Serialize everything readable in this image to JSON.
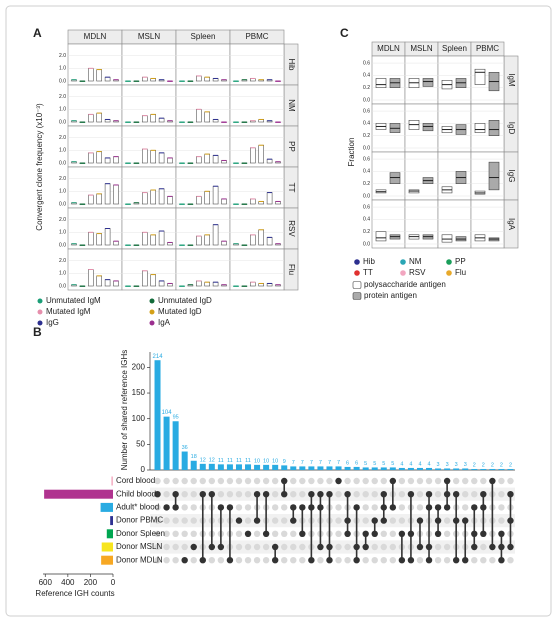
{
  "chart_data": [
    {
      "type": "faceted-box",
      "panel": "A",
      "ylabel": "Convergent clone frequency (x10⁻³)",
      "columns": [
        "MDLN",
        "MSLN",
        "Spleen",
        "PBMC"
      ],
      "rows": [
        "Hib",
        "NM",
        "PP",
        "TT",
        "RSV",
        "Flu"
      ],
      "ylim": [
        0,
        2.6
      ],
      "yticks": [
        {
          "value": 0,
          "label": "0.0"
        },
        {
          "value": 1,
          "label": "1.0"
        },
        {
          "value": 2,
          "label": "2.0"
        }
      ],
      "series": [
        {
          "name": "Unmutated IgM",
          "color": "#1b9e77",
          "values": [
            0.1,
            0,
            0,
            0,
            0.1,
            0,
            0,
            0,
            0.1,
            0,
            0,
            0,
            0.1,
            0,
            0,
            0,
            0.1,
            0,
            0,
            0.1,
            0.1,
            0,
            0,
            0
          ]
        },
        {
          "name": "Unmutated IgD",
          "color": "#126b3a",
          "values": [
            0,
            0,
            0,
            0.1,
            0,
            0,
            0,
            0,
            0,
            0,
            0,
            0,
            0,
            0.1,
            0,
            0,
            0,
            0,
            0,
            0,
            0,
            0,
            0.1,
            0
          ]
        },
        {
          "name": "Mutated IgM",
          "color": "#e68fac",
          "values": [
            1.0,
            0.3,
            0.4,
            0.2,
            0.6,
            0.5,
            1.0,
            0.1,
            0.8,
            1.1,
            0.5,
            1.2,
            0.7,
            0.9,
            0.6,
            0.4,
            1.0,
            1.0,
            0.7,
            0.8,
            1.3,
            1.2,
            0.4,
            0.3
          ]
        },
        {
          "name": "Mutated IgD",
          "color": "#d4a017",
          "values": [
            0.9,
            0.2,
            0.3,
            0.1,
            0.7,
            0.6,
            0.8,
            0.2,
            0.9,
            1.0,
            0.7,
            1.4,
            0.8,
            1.1,
            1.0,
            0.2,
            0.9,
            0.8,
            0.8,
            1.2,
            0.8,
            0.9,
            0.3,
            0.2
          ]
        },
        {
          "name": "IgG",
          "color": "#2c2f8f",
          "values": [
            0.3,
            0.1,
            0.2,
            0.1,
            0.2,
            0.3,
            0.2,
            0.1,
            0.4,
            0.8,
            0.6,
            0.3,
            1.6,
            1.2,
            1.4,
            0.9,
            1.3,
            1.1,
            1.6,
            0.6,
            0.5,
            0.4,
            0.3,
            0.2
          ]
        },
        {
          "name": "IgA",
          "color": "#9b2f8f",
          "values": [
            0.1,
            0,
            0.1,
            0,
            0.1,
            0.1,
            0,
            0,
            0.5,
            0.4,
            0.2,
            0.1,
            1.5,
            0.6,
            0.4,
            0.2,
            0.3,
            0.2,
            0.3,
            0.1,
            0.4,
            0.2,
            0.1,
            0.1
          ]
        }
      ]
    },
    {
      "type": "upset",
      "panel": "B",
      "ylabel": "Number of shared reference IGHs",
      "values": [
        214,
        104,
        95,
        36,
        18,
        12,
        12,
        11,
        11,
        11,
        11,
        10,
        10,
        10,
        9,
        7,
        7,
        7,
        7,
        7,
        7,
        6,
        6,
        5,
        5,
        5,
        5,
        4,
        4,
        4,
        4,
        3,
        3,
        3,
        3,
        2,
        2,
        2,
        2,
        2
      ],
      "color": "#29abe2",
      "ylim": [
        0,
        230
      ],
      "yticks": [
        0,
        50,
        100,
        150,
        200
      ],
      "sets": [
        "Cord blood",
        "Child blood",
        "Adult* blood",
        "Donor PBMC",
        "Donor Spleen",
        "Donor MSLN",
        "Donor MDLN"
      ],
      "set_colors": [
        "#f4b6c8",
        "#b0338f",
        "#29abe2",
        "#2e3192",
        "#00a651",
        "#f7e51e",
        "#f7a823"
      ],
      "set_sizes": [
        15,
        610,
        110,
        25,
        55,
        100,
        105
      ],
      "set_xlim": [
        0,
        620
      ],
      "set_xticks": [
        600,
        400,
        200,
        0
      ],
      "set_xlabel": "Reference IGH counts",
      "intersections": [
        [
          1
        ],
        [
          2
        ],
        [
          1,
          2
        ],
        [
          6
        ],
        [
          5
        ],
        [
          1,
          6
        ],
        [
          1,
          5
        ],
        [
          2,
          5
        ],
        [
          2,
          6
        ],
        [
          3
        ],
        [
          4
        ],
        [
          1,
          3
        ],
        [
          1,
          4
        ],
        [
          5,
          6
        ],
        [
          0,
          1
        ],
        [
          2,
          3
        ],
        [
          2,
          4
        ],
        [
          1,
          2,
          6
        ],
        [
          1,
          2,
          5
        ],
        [
          1,
          5,
          6
        ],
        [
          0
        ],
        [
          1,
          3,
          4
        ],
        [
          2,
          5,
          6
        ],
        [
          4,
          5
        ],
        [
          3,
          4
        ],
        [
          1,
          2,
          3
        ],
        [
          0,
          2
        ],
        [
          4,
          6
        ],
        [
          1,
          4,
          6
        ],
        [
          3,
          5
        ],
        [
          1,
          2,
          5,
          6
        ],
        [
          2,
          3,
          4
        ],
        [
          0,
          1,
          2
        ],
        [
          1,
          3,
          6
        ],
        [
          3,
          6
        ],
        [
          2,
          4,
          5
        ],
        [
          1,
          2,
          4
        ],
        [
          0,
          5
        ],
        [
          4,
          5,
          6
        ],
        [
          1,
          3,
          5
        ]
      ]
    },
    {
      "type": "faceted-box",
      "panel": "C",
      "ylabel": "Fraction",
      "columns": [
        "MDLN",
        "MSLN",
        "Spleen",
        "PBMC"
      ],
      "rows": [
        "IgM",
        "IgD",
        "IgG",
        "IgA"
      ],
      "ylim": [
        0,
        0.65
      ],
      "yticks": [
        {
          "value": 0,
          "label": "0.0"
        },
        0.2,
        0.4,
        0.6
      ],
      "antigens": [
        {
          "name": "Hib",
          "color": "#2c2f8f"
        },
        {
          "name": "NM",
          "color": "#2aa6b5"
        },
        {
          "name": "PP",
          "color": "#1a9e5a"
        },
        {
          "name": "TT",
          "color": "#e0312f"
        },
        {
          "name": "RSV",
          "color": "#f2a6c0"
        },
        {
          "name": "Flu",
          "color": "#e8a92a"
        }
      ],
      "series": [
        {
          "name": "polysaccharide antigen",
          "color": "#ffffff",
          "q1": [
            0.2,
            0.2,
            0.18,
            0.25,
            0.3,
            0.3,
            0.25,
            0.25,
            0.05,
            0.05,
            0.05,
            0.03,
            0.05,
            0.08,
            0.03,
            0.05
          ],
          "median": [
            0.25,
            0.28,
            0.25,
            0.45,
            0.35,
            0.38,
            0.3,
            0.3,
            0.07,
            0.08,
            0.1,
            0.05,
            0.1,
            0.12,
            0.08,
            0.1
          ],
          "q3": [
            0.35,
            0.35,
            0.32,
            0.5,
            0.4,
            0.45,
            0.35,
            0.4,
            0.1,
            0.1,
            0.15,
            0.08,
            0.2,
            0.15,
            0.15,
            0.15
          ]
        },
        {
          "name": "protein antigen",
          "color": "#aaaaaa",
          "q1": [
            0.2,
            0.22,
            0.2,
            0.15,
            0.25,
            0.28,
            0.22,
            0.2,
            0.2,
            0.2,
            0.2,
            0.1,
            0.08,
            0.08,
            0.05,
            0.05
          ],
          "median": [
            0.28,
            0.3,
            0.28,
            0.3,
            0.32,
            0.35,
            0.3,
            0.3,
            0.3,
            0.25,
            0.3,
            0.3,
            0.12,
            0.12,
            0.08,
            0.08
          ],
          "q3": [
            0.35,
            0.35,
            0.35,
            0.45,
            0.4,
            0.4,
            0.38,
            0.45,
            0.38,
            0.3,
            0.4,
            0.55,
            0.15,
            0.15,
            0.12,
            0.1
          ]
        }
      ]
    }
  ]
}
